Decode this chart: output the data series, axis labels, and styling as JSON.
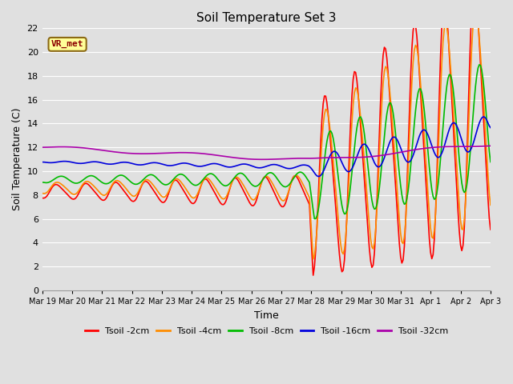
{
  "title": "Soil Temperature Set 3",
  "xlabel": "Time",
  "ylabel": "Soil Temperature (C)",
  "ylim": [
    0,
    22
  ],
  "yticks": [
    0,
    2,
    4,
    6,
    8,
    10,
    12,
    14,
    16,
    18,
    20,
    22
  ],
  "background_color": "#e0e0e0",
  "plot_bg_color": "#e0e0e0",
  "grid_color": "#ffffff",
  "series": {
    "Tsoil -2cm": {
      "color": "#ff0000",
      "lw": 1.2
    },
    "Tsoil -4cm": {
      "color": "#ff8c00",
      "lw": 1.2
    },
    "Tsoil -8cm": {
      "color": "#00bb00",
      "lw": 1.2
    },
    "Tsoil -16cm": {
      "color": "#0000dd",
      "lw": 1.2
    },
    "Tsoil -32cm": {
      "color": "#aa00aa",
      "lw": 1.2
    }
  },
  "annotation": {
    "text": "VR_met",
    "fontsize": 8,
    "color": "#8b0000",
    "bg": "#ffff99",
    "border_color": "#8b6914"
  },
  "xtick_labels": [
    "Mar 19",
    "Mar 20",
    "Mar 21",
    "Mar 22",
    "Mar 23",
    "Mar 24",
    "Mar 25",
    "Mar 26",
    "Mar 27",
    "Mar 28",
    "Mar 29",
    "Mar 30",
    "Mar 31",
    "Apr 1",
    "Apr 2",
    "Apr 3"
  ],
  "xtick_positions": [
    0,
    1,
    2,
    3,
    4,
    5,
    6,
    7,
    8,
    9,
    10,
    11,
    12,
    13,
    14,
    15
  ]
}
